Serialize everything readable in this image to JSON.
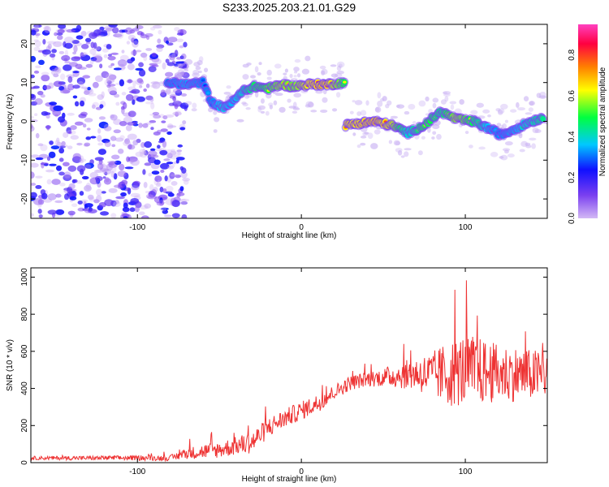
{
  "chart_data": [
    {
      "type": "heatmap",
      "title": "S233.2025.203.21.01.G29",
      "xlabel": "Height of straight line (km)",
      "ylabel": "Frequency (Hz)",
      "xlim": [
        -165,
        150
      ],
      "ylim": [
        -25,
        25
      ],
      "x_ticks": [
        -100,
        0,
        100
      ],
      "y_ticks": [
        -20,
        -10,
        0,
        10,
        20
      ],
      "colorbar": {
        "label": "Normalized spectral amplitude",
        "range": [
          0,
          0.95
        ],
        "ticks": [
          0.0,
          0.2,
          0.4,
          0.6,
          0.8
        ],
        "colors": [
          "#d3b8f5",
          "#7a3ff0",
          "#1010ff",
          "#00c8ff",
          "#00ff40",
          "#ffff00",
          "#ff8000",
          "#ff0040",
          "#ff40c0"
        ]
      },
      "ridge": {
        "x": [
          -82,
          -70,
          -60,
          -55,
          -48,
          -42,
          -35,
          -28,
          -20,
          -12,
          -5,
          5,
          15,
          27,
          27,
          35,
          45,
          55,
          65,
          75,
          85,
          95,
          105,
          115,
          122,
          130,
          140,
          148
        ],
        "frequency": [
          10,
          9.5,
          10,
          5,
          3.5,
          5,
          8,
          9,
          8.5,
          9.5,
          9,
          9.5,
          9.5,
          10,
          -1,
          -0.5,
          0,
          -1,
          -3,
          -1,
          2.5,
          0.5,
          0,
          -2,
          -3.5,
          -2,
          0,
          1
        ],
        "amplitude": [
          0.3,
          0.35,
          0.3,
          0.3,
          0.4,
          0.35,
          0.45,
          0.55,
          0.6,
          0.7,
          0.65,
          0.8,
          0.85,
          0.55,
          0.8,
          0.8,
          0.85,
          0.75,
          0.4,
          0.6,
          0.5,
          0.7,
          0.55,
          0.35,
          0.3,
          0.35,
          0.45,
          0.5
        ]
      },
      "noise_region": [
        -165,
        -80
      ]
    },
    {
      "type": "line",
      "xlabel": "Height of straight line (km)",
      "ylabel": "SNR (10 * v/v)",
      "xlim": [
        -165,
        150
      ],
      "ylim": [
        0,
        1050
      ],
      "x_ticks": [
        -100,
        0,
        100
      ],
      "y_ticks": [
        0,
        200,
        400,
        600,
        800,
        1000
      ],
      "color": "#ee3333",
      "envelope": {
        "x": [
          -165,
          -120,
          -80,
          -70,
          -60,
          -50,
          -40,
          -30,
          -20,
          -10,
          0,
          10,
          20,
          30,
          40,
          50,
          60,
          70,
          80,
          90,
          100,
          110,
          120,
          130,
          140,
          150
        ],
        "mean": [
          25,
          25,
          25,
          50,
          60,
          70,
          90,
          110,
          190,
          240,
          280,
          320,
          380,
          430,
          450,
          460,
          470,
          480,
          470,
          480,
          500,
          490,
          480,
          480,
          470,
          480
        ],
        "spread": [
          10,
          12,
          15,
          30,
          40,
          45,
          50,
          60,
          55,
          50,
          50,
          50,
          40,
          40,
          40,
          50,
          70,
          90,
          130,
          180,
          200,
          180,
          160,
          150,
          140,
          140
        ]
      }
    }
  ]
}
